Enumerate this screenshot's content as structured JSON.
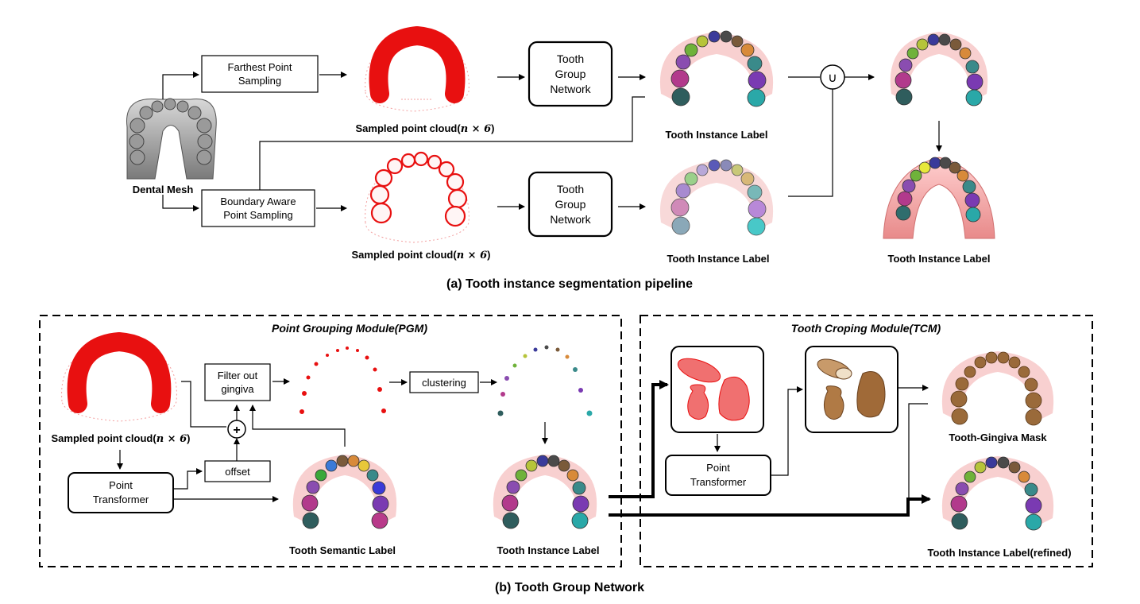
{
  "part_a": {
    "caption": "(a) Tooth instance segmentation pipeline",
    "dental_mesh_label": "Dental Mesh",
    "fps_box": [
      "Farthest Point",
      "Sampling"
    ],
    "baps_box": [
      "Boundary Aware",
      "Point Sampling"
    ],
    "tgn_box": [
      "Tooth",
      "Group",
      "Network"
    ],
    "sampled_label": "Sampled point cloud(",
    "sampled_math": "n × 6",
    "sampled_close": ")",
    "instance_label": "Tooth Instance Label",
    "union_symbol": "∪"
  },
  "part_b": {
    "caption": "(b) Tooth Group Network",
    "pgm_title": "Point Grouping Module(PGM)",
    "tcm_title": "Tooth Croping Module(TCM)",
    "sampled_label": "Sampled point cloud(",
    "sampled_math": "n × 6",
    "sampled_close": ")",
    "point_transformer_box": [
      "Point",
      "Transformer"
    ],
    "filter_box": [
      "Filter out",
      "gingiva"
    ],
    "offset_box": "offset",
    "clustering_box": "clustering",
    "plus_symbol": "+",
    "semantic_label": "Tooth Semantic Label",
    "instance_label": "Tooth Instance Label",
    "mask_label": "Tooth-Gingiva Mask",
    "refined_label": "Tooth Instance Label(refined)"
  },
  "colors": {
    "red_cloud": "#e81010",
    "gum": "#f6b8b8",
    "tooth_brown": "#9a6a3a"
  }
}
